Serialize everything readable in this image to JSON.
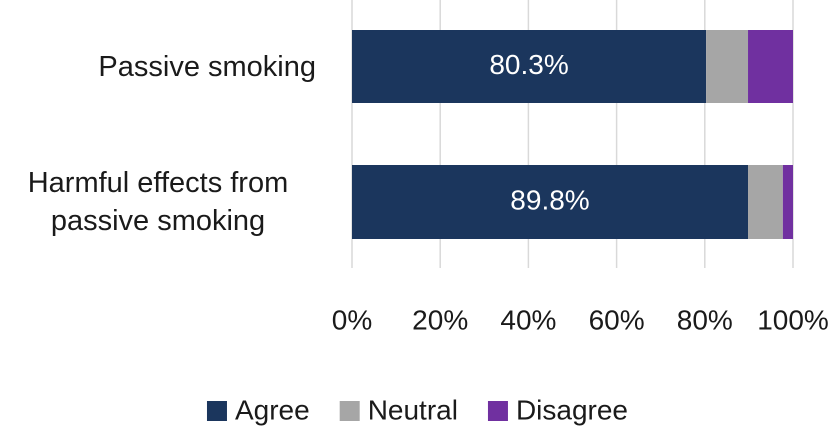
{
  "chart_data": {
    "type": "stacked_barh",
    "categories": [
      "Passive smoking",
      "Harmful effects from passive smoking"
    ],
    "series": [
      {
        "name": "Agree",
        "color": "#1b365d",
        "values": [
          80.3,
          89.8
        ],
        "value_labels": [
          "80.3%",
          "89.8%"
        ]
      },
      {
        "name": "Neutral",
        "color": "#a6a6a6",
        "values": [
          9.5,
          7.9
        ]
      },
      {
        "name": "Disagree",
        "color": "#7030a0",
        "values": [
          10.2,
          2.3
        ]
      }
    ],
    "xlim": [
      0,
      100
    ],
    "xticks": [
      {
        "value": 0,
        "label": "0%"
      },
      {
        "value": 20,
        "label": "20%"
      },
      {
        "value": 40,
        "label": "40%"
      },
      {
        "value": 60,
        "label": "60%"
      },
      {
        "value": 80,
        "label": "80%"
      },
      {
        "value": 100,
        "label": "100%"
      }
    ],
    "grid": true,
    "legend": "bottom"
  }
}
